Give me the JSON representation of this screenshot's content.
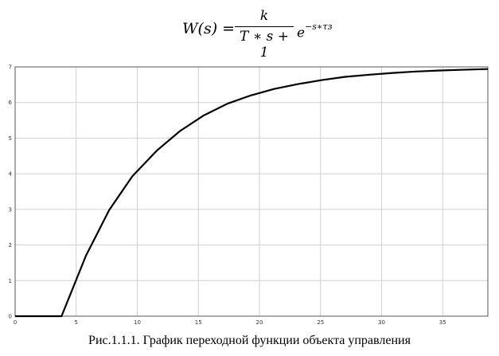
{
  "formula": {
    "lhs": "W(s) =",
    "numerator": "k",
    "denominator": "T ∗ s + 1",
    "exp_base": "e",
    "exp_power": "−s∗τз"
  },
  "caption": "Рис.1.1.1. График переходной функции объекта управления",
  "chart_data": {
    "type": "line",
    "title": "",
    "xlabel": "",
    "ylabel": "",
    "xlim": [
      0,
      38.7
    ],
    "ylim": [
      0,
      7
    ],
    "x_ticks": [
      0,
      5,
      10,
      15,
      20,
      25,
      30,
      35
    ],
    "y_ticks": [
      0,
      1,
      2,
      3,
      4,
      5,
      6,
      7
    ],
    "grid": true,
    "line_color": "#000000",
    "series": [
      {
        "x": [
          0,
          3.8,
          5.8,
          7.7,
          9.6,
          11.6,
          13.5,
          15.4,
          17.4,
          19.3,
          21.2,
          23.2,
          25.1,
          27.0,
          29.0,
          30.9,
          32.8,
          34.8,
          36.7,
          38.7
        ],
        "values": [
          0,
          0,
          1.7,
          2.98,
          3.93,
          4.65,
          5.2,
          5.63,
          5.97,
          6.2,
          6.38,
          6.52,
          6.63,
          6.72,
          6.78,
          6.83,
          6.87,
          6.9,
          6.92,
          6.94
        ]
      }
    ]
  }
}
